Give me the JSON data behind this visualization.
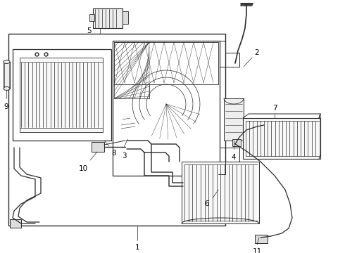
{
  "bg_color": "#ffffff",
  "line_color": "#2a2a2a",
  "label_color": "#000000",
  "figsize": [
    4.9,
    3.6
  ],
  "dpi": 100
}
